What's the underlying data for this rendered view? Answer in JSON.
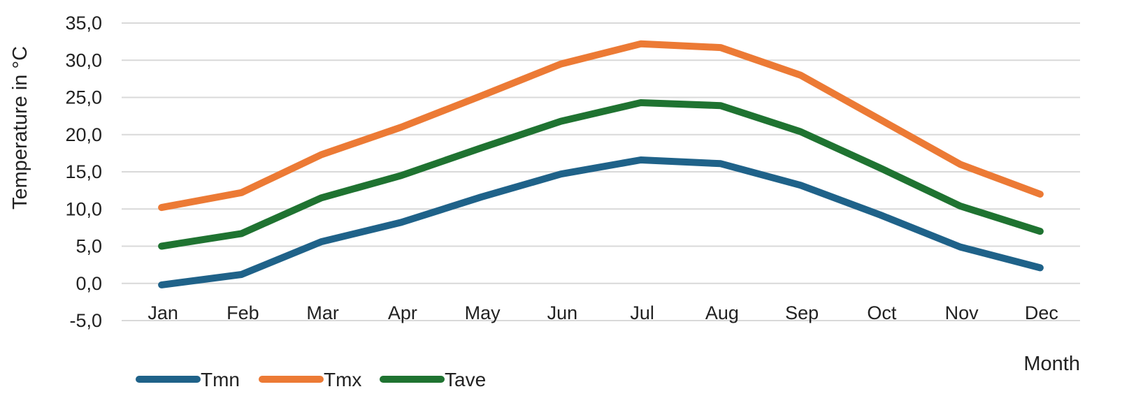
{
  "chart_data": {
    "type": "line",
    "title": "",
    "xlabel": "Month",
    "ylabel": "Temperature in °C",
    "categories": [
      "Jan",
      "Feb",
      "Mar",
      "Apr",
      "May",
      "Jun",
      "Jul",
      "Aug",
      "Sep",
      "Oct",
      "Nov",
      "Dec"
    ],
    "ylim": [
      -5,
      35
    ],
    "yticks": [
      "-5,0",
      "0,0",
      "5,0",
      "10,0",
      "15,0",
      "20,0",
      "25,0",
      "30,0",
      "35,0"
    ],
    "grid": true,
    "legend_position": "bottom-left",
    "series": [
      {
        "name": "Tmn",
        "color": "#1f6289",
        "values": [
          -0.2,
          1.2,
          5.6,
          8.2,
          11.6,
          14.7,
          16.6,
          16.1,
          13.2,
          9.2,
          4.9,
          2.1
        ]
      },
      {
        "name": "Tmx",
        "color": "#ec7a35",
        "values": [
          10.2,
          12.2,
          17.3,
          21.0,
          25.2,
          29.5,
          32.2,
          31.7,
          28.0,
          22.0,
          16.0,
          12.0
        ]
      },
      {
        "name": "Tave",
        "color": "#1f7331",
        "values": [
          5.0,
          6.7,
          11.5,
          14.5,
          18.2,
          21.8,
          24.3,
          23.9,
          20.4,
          15.5,
          10.4,
          7.0
        ]
      }
    ]
  }
}
